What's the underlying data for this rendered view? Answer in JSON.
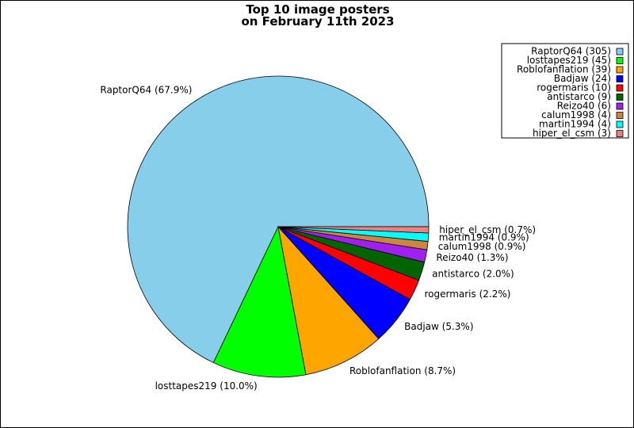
{
  "chart_data": {
    "type": "pie",
    "title": [
      "Top 10 image posters",
      "on February 11th 2023"
    ],
    "legend_position": "top-right",
    "slices": [
      {
        "name": "RaptorQ64",
        "value": 305,
        "percent": "67.9%",
        "color": "#87ceeb"
      },
      {
        "name": "losttapes219",
        "value": 45,
        "percent": "10.0%",
        "color": "#00ff00"
      },
      {
        "name": "Roblofanflation",
        "value": 39,
        "percent": "8.7%",
        "color": "#ffa500"
      },
      {
        "name": "Badjaw",
        "value": 24,
        "percent": "5.3%",
        "color": "#0000ff"
      },
      {
        "name": "rogermaris",
        "value": 10,
        "percent": "2.2%",
        "color": "#ff0000"
      },
      {
        "name": "antistarco",
        "value": 9,
        "percent": "2.0%",
        "color": "#006400"
      },
      {
        "name": "Reizo40",
        "value": 6,
        "percent": "1.3%",
        "color": "#a020f0"
      },
      {
        "name": "calum1998",
        "value": 4,
        "percent": "0.9%",
        "color": "#cd853f"
      },
      {
        "name": "martin1994",
        "value": 4,
        "percent": "0.9%",
        "color": "#00ffff"
      },
      {
        "name": "hiper_el_csm",
        "value": 3,
        "percent": "0.7%",
        "color": "#f08080"
      }
    ]
  }
}
